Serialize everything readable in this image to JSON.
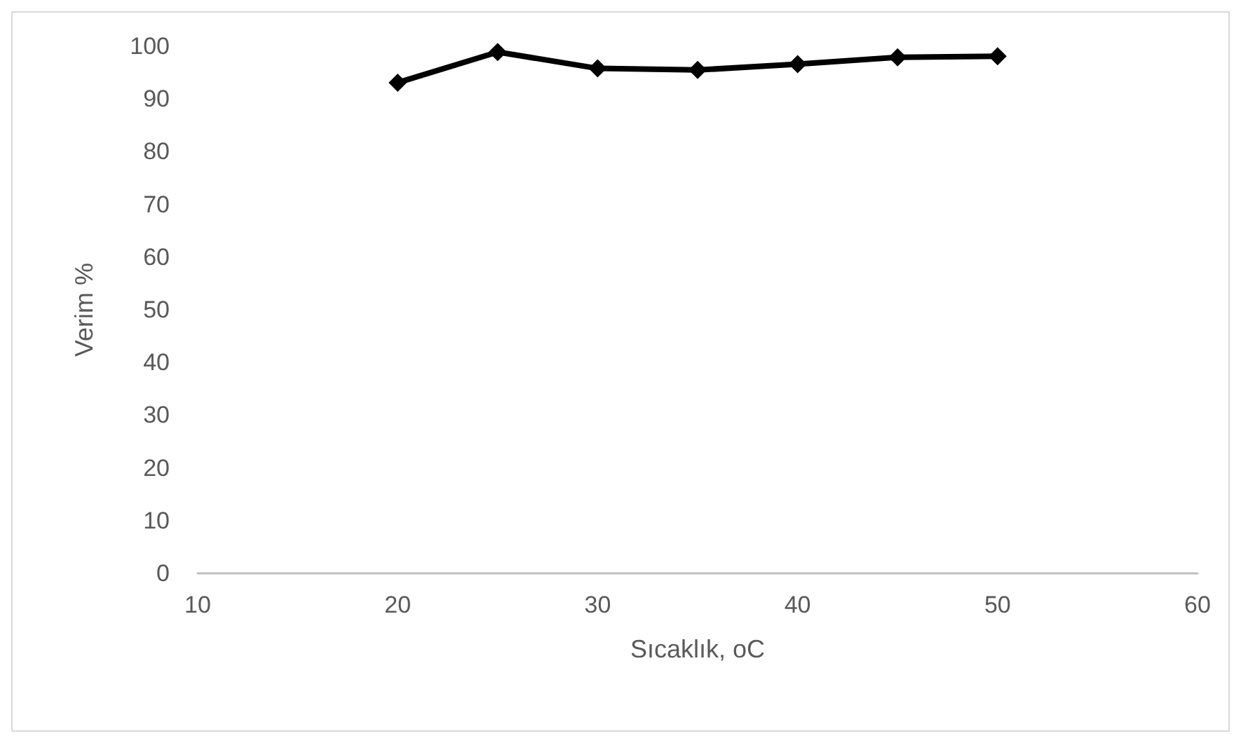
{
  "chart_data": {
    "type": "line",
    "xlabel": "Sıcaklık, oC",
    "ylabel": "Verim %",
    "x": [
      20,
      25,
      30,
      35,
      40,
      45,
      50
    ],
    "series": [
      {
        "color": "#000000",
        "values": [
          93.1,
          98.9,
          95.8,
          95.5,
          96.6,
          97.9,
          98.1
        ]
      }
    ],
    "xlim": [
      10,
      60
    ],
    "xticks": [
      10,
      20,
      30,
      40,
      50,
      60
    ],
    "ylim": [
      0,
      100
    ],
    "yticks": [
      0,
      10,
      20,
      30,
      40,
      50,
      60,
      70,
      80,
      90,
      100
    ],
    "grid": false,
    "marker": "diamond",
    "line_style": "solid"
  }
}
